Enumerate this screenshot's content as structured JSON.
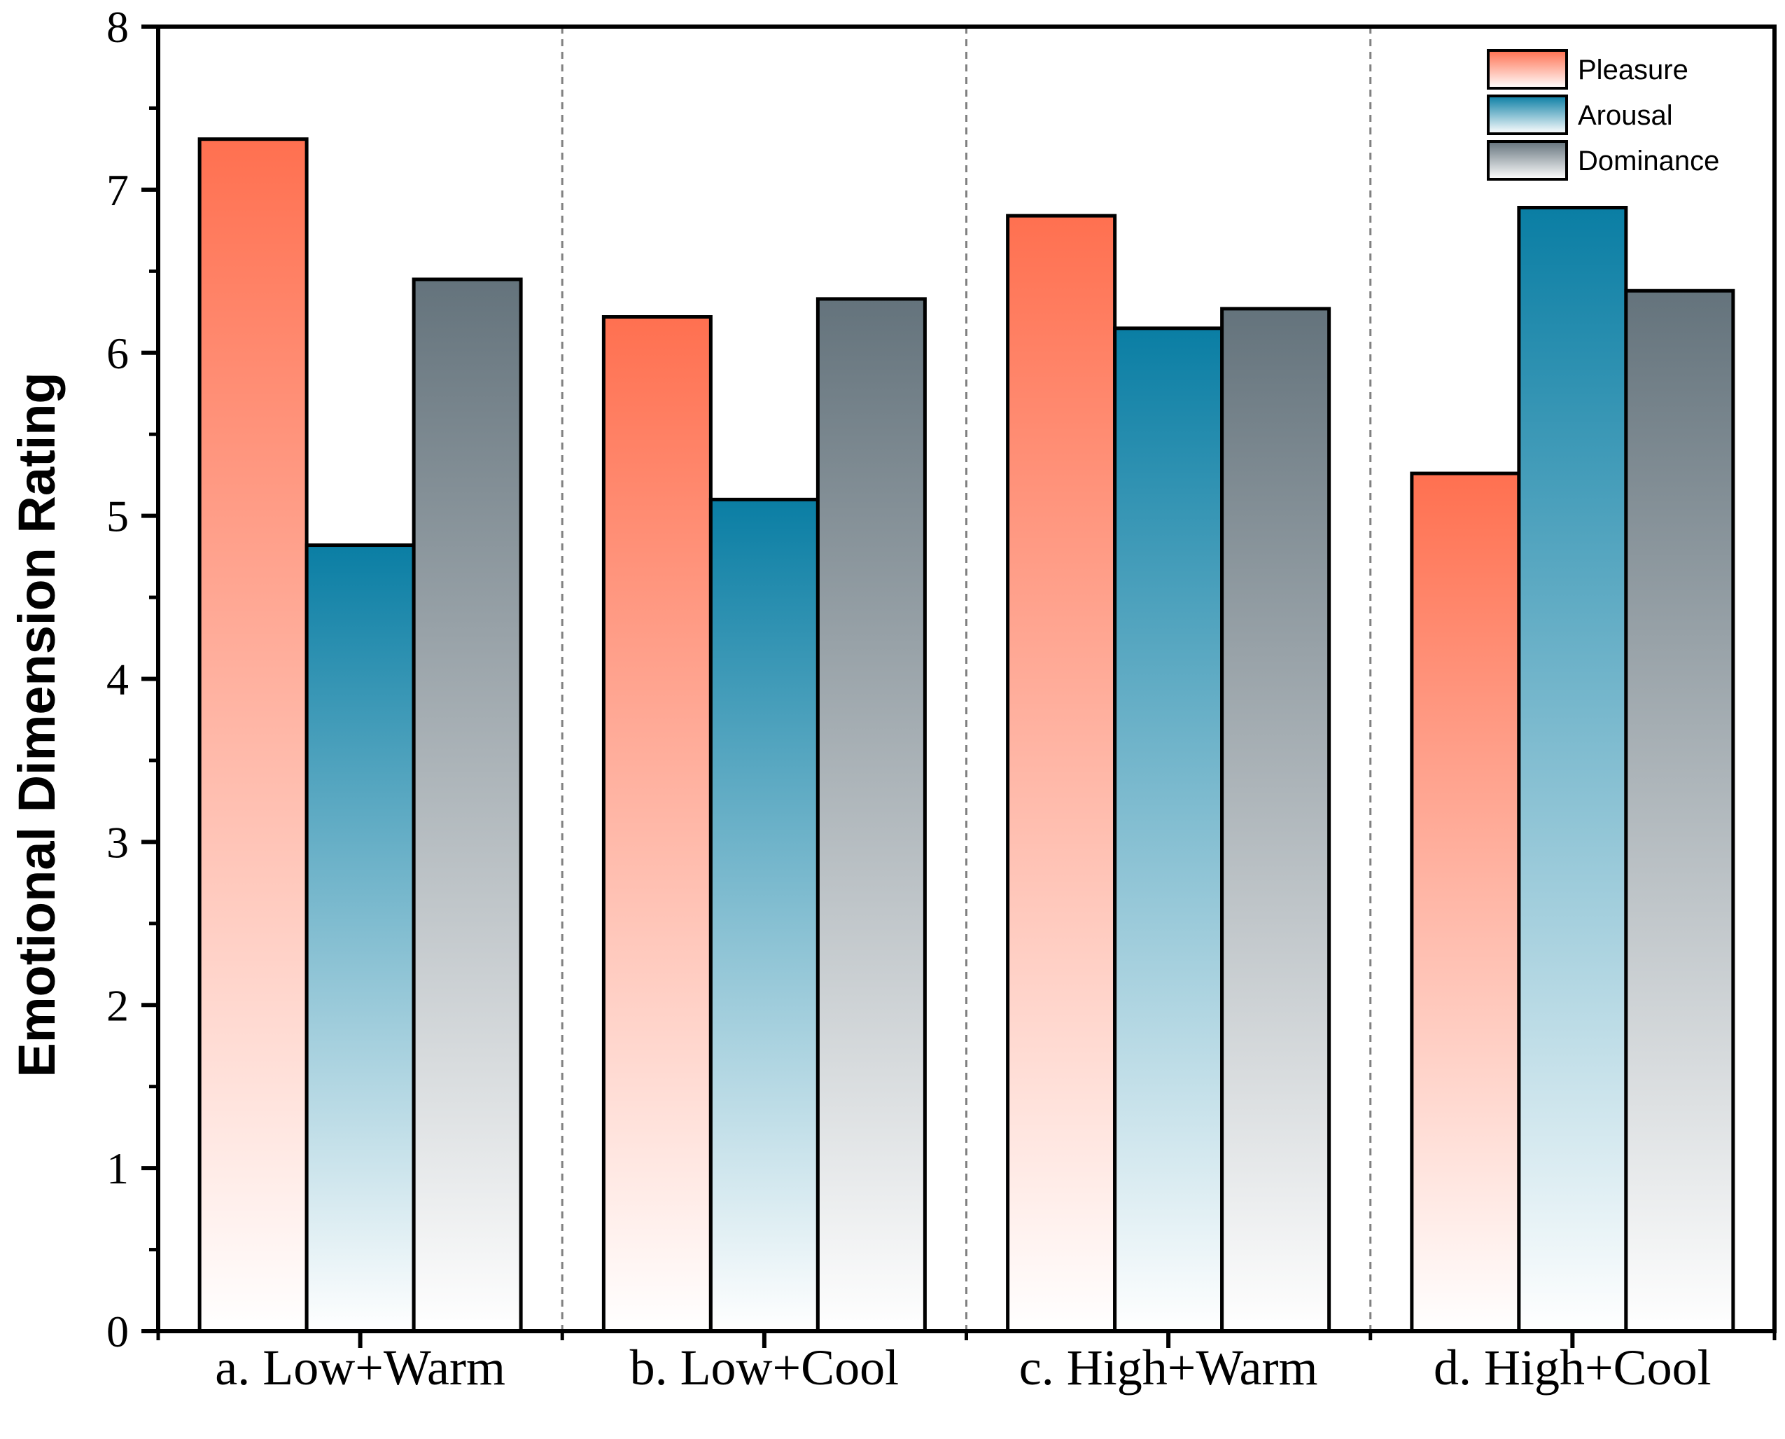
{
  "chart_data": {
    "type": "bar",
    "title": "",
    "xlabel": "",
    "ylabel": "Emotional Dimension Rating",
    "ylim": [
      0,
      8
    ],
    "yticks": [
      "0",
      "1",
      "2",
      "3",
      "4",
      "5",
      "6",
      "7",
      "8"
    ],
    "grid": false,
    "group_separators": "dashed",
    "legend_position": "top-right",
    "categories": [
      "a. Low+Warm",
      "b. Low+Cool",
      "c. High+Warm",
      "d. High+Cool"
    ],
    "series": [
      {
        "name": "Pleasure",
        "values": [
          7.31,
          6.22,
          6.84,
          5.26
        ],
        "color_top": "#ff7050",
        "color_bottom": "#ffffff"
      },
      {
        "name": "Arousal",
        "values": [
          4.82,
          5.1,
          6.15,
          6.89
        ],
        "color_top": "#0a7ea4",
        "color_bottom": "#ffffff"
      },
      {
        "name": "Dominance",
        "values": [
          6.45,
          6.33,
          6.27,
          6.38
        ],
        "color_top": "#64737c",
        "color_bottom": "#ffffff"
      }
    ]
  }
}
